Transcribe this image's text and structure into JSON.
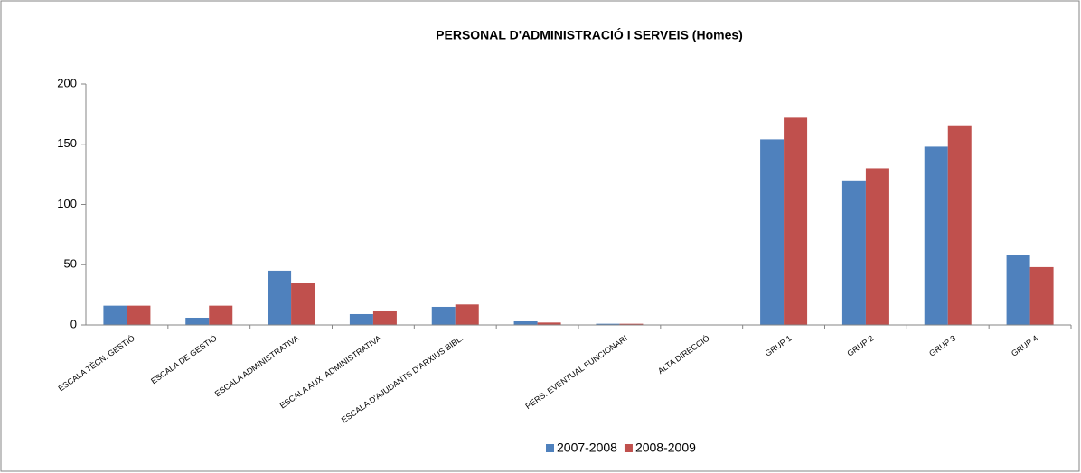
{
  "chart_data": {
    "type": "bar",
    "title": "PERSONAL D'ADMINISTRACIÓ  I SERVEIS (Homes)",
    "categories": [
      "ESCALA TÈCN. GESTIÓ",
      "ESCALA DE GESTIÓ",
      "ESCALA ADMINISTRATIVA",
      "ESCALA AUX. ADMINISTRATIVA",
      "ESCALA D'AJUDANTS D'ARXIUS BIBL.",
      null,
      "PERS. EVENTUAL FUNCIONARI",
      "ALTA DIRECCIÓ",
      "GRUP 1",
      "GRUP 2",
      "GRUP 3",
      "GRUP 4"
    ],
    "series": [
      {
        "name": "2007-2008",
        "color": "#4f81bd",
        "values": [
          16,
          6,
          45,
          9,
          15,
          3,
          1,
          0,
          154,
          120,
          148,
          58
        ]
      },
      {
        "name": "2008-2009",
        "color": "#c0504d",
        "values": [
          16,
          16,
          35,
          12,
          17,
          2,
          1,
          0,
          172,
          130,
          165,
          48
        ]
      }
    ],
    "ylim": [
      0,
      200
    ],
    "yticks": [
      0,
      50,
      100,
      150,
      200
    ],
    "grid": false,
    "legend": "bottom"
  }
}
